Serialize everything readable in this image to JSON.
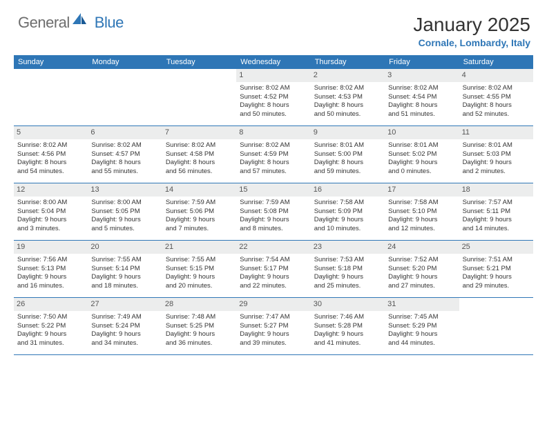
{
  "logo": {
    "text_gray": "General",
    "text_blue": "Blue"
  },
  "title": "January 2025",
  "location": "Cornale, Lombardy, Italy",
  "colors": {
    "header_bg": "#2e76b6",
    "daynum_bg": "#eceded",
    "border": "#2e76b6",
    "logo_gray": "#6d6d6d",
    "logo_blue": "#2e76b6"
  },
  "day_names": [
    "Sunday",
    "Monday",
    "Tuesday",
    "Wednesday",
    "Thursday",
    "Friday",
    "Saturday"
  ],
  "weeks": [
    [
      null,
      null,
      null,
      {
        "n": "1",
        "sr": "8:02 AM",
        "ss": "4:52 PM",
        "dl1": "Daylight: 8 hours",
        "dl2": "and 50 minutes."
      },
      {
        "n": "2",
        "sr": "8:02 AM",
        "ss": "4:53 PM",
        "dl1": "Daylight: 8 hours",
        "dl2": "and 50 minutes."
      },
      {
        "n": "3",
        "sr": "8:02 AM",
        "ss": "4:54 PM",
        "dl1": "Daylight: 8 hours",
        "dl2": "and 51 minutes."
      },
      {
        "n": "4",
        "sr": "8:02 AM",
        "ss": "4:55 PM",
        "dl1": "Daylight: 8 hours",
        "dl2": "and 52 minutes."
      }
    ],
    [
      {
        "n": "5",
        "sr": "8:02 AM",
        "ss": "4:56 PM",
        "dl1": "Daylight: 8 hours",
        "dl2": "and 54 minutes."
      },
      {
        "n": "6",
        "sr": "8:02 AM",
        "ss": "4:57 PM",
        "dl1": "Daylight: 8 hours",
        "dl2": "and 55 minutes."
      },
      {
        "n": "7",
        "sr": "8:02 AM",
        "ss": "4:58 PM",
        "dl1": "Daylight: 8 hours",
        "dl2": "and 56 minutes."
      },
      {
        "n": "8",
        "sr": "8:02 AM",
        "ss": "4:59 PM",
        "dl1": "Daylight: 8 hours",
        "dl2": "and 57 minutes."
      },
      {
        "n": "9",
        "sr": "8:01 AM",
        "ss": "5:00 PM",
        "dl1": "Daylight: 8 hours",
        "dl2": "and 59 minutes."
      },
      {
        "n": "10",
        "sr": "8:01 AM",
        "ss": "5:02 PM",
        "dl1": "Daylight: 9 hours",
        "dl2": "and 0 minutes."
      },
      {
        "n": "11",
        "sr": "8:01 AM",
        "ss": "5:03 PM",
        "dl1": "Daylight: 9 hours",
        "dl2": "and 2 minutes."
      }
    ],
    [
      {
        "n": "12",
        "sr": "8:00 AM",
        "ss": "5:04 PM",
        "dl1": "Daylight: 9 hours",
        "dl2": "and 3 minutes."
      },
      {
        "n": "13",
        "sr": "8:00 AM",
        "ss": "5:05 PM",
        "dl1": "Daylight: 9 hours",
        "dl2": "and 5 minutes."
      },
      {
        "n": "14",
        "sr": "7:59 AM",
        "ss": "5:06 PM",
        "dl1": "Daylight: 9 hours",
        "dl2": "and 7 minutes."
      },
      {
        "n": "15",
        "sr": "7:59 AM",
        "ss": "5:08 PM",
        "dl1": "Daylight: 9 hours",
        "dl2": "and 8 minutes."
      },
      {
        "n": "16",
        "sr": "7:58 AM",
        "ss": "5:09 PM",
        "dl1": "Daylight: 9 hours",
        "dl2": "and 10 minutes."
      },
      {
        "n": "17",
        "sr": "7:58 AM",
        "ss": "5:10 PM",
        "dl1": "Daylight: 9 hours",
        "dl2": "and 12 minutes."
      },
      {
        "n": "18",
        "sr": "7:57 AM",
        "ss": "5:11 PM",
        "dl1": "Daylight: 9 hours",
        "dl2": "and 14 minutes."
      }
    ],
    [
      {
        "n": "19",
        "sr": "7:56 AM",
        "ss": "5:13 PM",
        "dl1": "Daylight: 9 hours",
        "dl2": "and 16 minutes."
      },
      {
        "n": "20",
        "sr": "7:55 AM",
        "ss": "5:14 PM",
        "dl1": "Daylight: 9 hours",
        "dl2": "and 18 minutes."
      },
      {
        "n": "21",
        "sr": "7:55 AM",
        "ss": "5:15 PM",
        "dl1": "Daylight: 9 hours",
        "dl2": "and 20 minutes."
      },
      {
        "n": "22",
        "sr": "7:54 AM",
        "ss": "5:17 PM",
        "dl1": "Daylight: 9 hours",
        "dl2": "and 22 minutes."
      },
      {
        "n": "23",
        "sr": "7:53 AM",
        "ss": "5:18 PM",
        "dl1": "Daylight: 9 hours",
        "dl2": "and 25 minutes."
      },
      {
        "n": "24",
        "sr": "7:52 AM",
        "ss": "5:20 PM",
        "dl1": "Daylight: 9 hours",
        "dl2": "and 27 minutes."
      },
      {
        "n": "25",
        "sr": "7:51 AM",
        "ss": "5:21 PM",
        "dl1": "Daylight: 9 hours",
        "dl2": "and 29 minutes."
      }
    ],
    [
      {
        "n": "26",
        "sr": "7:50 AM",
        "ss": "5:22 PM",
        "dl1": "Daylight: 9 hours",
        "dl2": "and 31 minutes."
      },
      {
        "n": "27",
        "sr": "7:49 AM",
        "ss": "5:24 PM",
        "dl1": "Daylight: 9 hours",
        "dl2": "and 34 minutes."
      },
      {
        "n": "28",
        "sr": "7:48 AM",
        "ss": "5:25 PM",
        "dl1": "Daylight: 9 hours",
        "dl2": "and 36 minutes."
      },
      {
        "n": "29",
        "sr": "7:47 AM",
        "ss": "5:27 PM",
        "dl1": "Daylight: 9 hours",
        "dl2": "and 39 minutes."
      },
      {
        "n": "30",
        "sr": "7:46 AM",
        "ss": "5:28 PM",
        "dl1": "Daylight: 9 hours",
        "dl2": "and 41 minutes."
      },
      {
        "n": "31",
        "sr": "7:45 AM",
        "ss": "5:29 PM",
        "dl1": "Daylight: 9 hours",
        "dl2": "and 44 minutes."
      },
      null
    ]
  ]
}
